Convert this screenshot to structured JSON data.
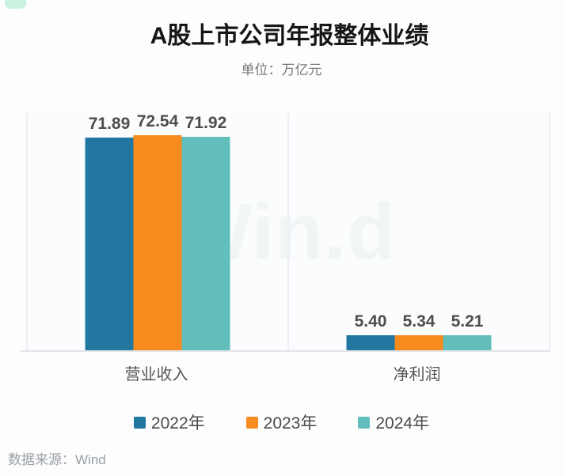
{
  "header": {
    "title": "A股上市公司年报整体业绩",
    "subtitle": "单位：万亿元"
  },
  "watermark": {
    "text": "Win.d"
  },
  "footer": {
    "source": "数据来源：Wind"
  },
  "chart_data": {
    "type": "bar",
    "title": "A股上市公司年报整体业绩",
    "unit_label": "单位：万亿元",
    "categories": [
      "营业收入",
      "净利润"
    ],
    "series": [
      {
        "key": "2022",
        "name": "2022年",
        "color": "#2277a1",
        "values": [
          71.89,
          5.4
        ]
      },
      {
        "key": "2023",
        "name": "2023年",
        "color": "#f78b1e",
        "values": [
          72.54,
          5.34
        ]
      },
      {
        "key": "2024",
        "name": "2024年",
        "color": "#62bebb",
        "values": [
          71.92,
          5.21
        ]
      }
    ],
    "value_label_decimals": 2,
    "ylim": [
      0,
      80
    ],
    "grid": false,
    "legend_position": "bottom",
    "source": "Wind"
  }
}
